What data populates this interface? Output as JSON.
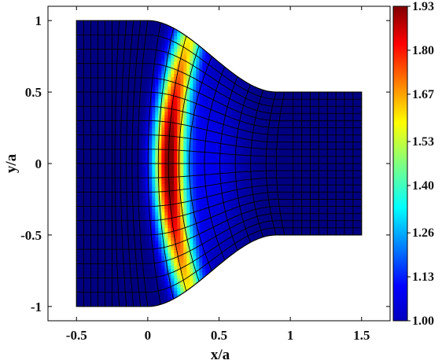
{
  "chart_data": {
    "type": "heatmap",
    "title": "",
    "xlabel": "x/a",
    "ylabel": "y/a",
    "xlim": [
      -0.7,
      1.7
    ],
    "ylim": [
      -1.1,
      1.1
    ],
    "x_ticks": [
      -0.5,
      0,
      0.5,
      1,
      1.5
    ],
    "x_tick_labels": [
      "-0.5",
      "0",
      "0.5",
      "1",
      "1.5"
    ],
    "y_ticks": [
      -1,
      -0.5,
      0,
      0.5,
      1
    ],
    "y_tick_labels": [
      "-1",
      "-0.5",
      "0",
      "0.5",
      "1"
    ],
    "colorbar": {
      "range": [
        1.0,
        1.93
      ],
      "ticks": [
        1.0,
        1.13,
        1.26,
        1.4,
        1.53,
        1.67,
        1.8,
        1.93
      ],
      "tick_labels": [
        "1.00",
        "1.13",
        "1.26",
        "1.40",
        "1.53",
        "1.67",
        "1.80",
        "1.93"
      ],
      "colormap": "jet"
    },
    "domain": {
      "left_channel": {
        "x": [
          -0.5,
          0
        ],
        "half_height": 1.0
      },
      "taper": {
        "x": [
          0,
          0.9
        ],
        "from_half_height": 1.0,
        "to_half_height": 0.5
      },
      "right_channel": {
        "x": [
          0.9,
          1.5
        ],
        "half_height": 0.5
      }
    },
    "peak": {
      "x": 0.15,
      "y": 0,
      "value": 1.93
    },
    "grid": true,
    "mesh_lines": true
  }
}
